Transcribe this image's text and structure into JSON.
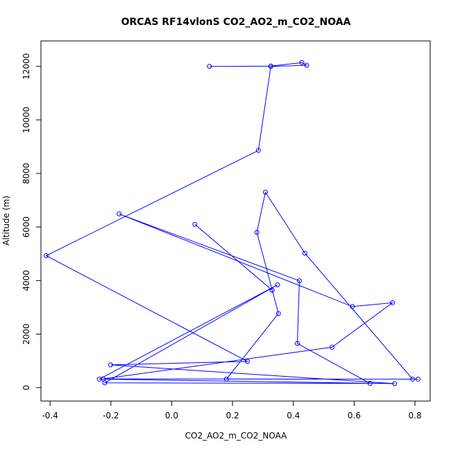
{
  "chart_data": {
    "type": "line",
    "title": "ORCAS RF14vlonS CO2_AO2_m_CO2_NOAA",
    "xlabel": "CO2_AO2_m_CO2_NOAA",
    "ylabel": "Altitude (m)",
    "xlim": [
      -0.43,
      0.85
    ],
    "ylim": [
      -500,
      12950
    ],
    "xticks": [
      -0.4,
      -0.2,
      0.0,
      0.2,
      0.4,
      0.6,
      0.8
    ],
    "xtick_labels": [
      "-0.4",
      "-0.2",
      "0.0",
      "0.2",
      "0.4",
      "0.6",
      "0.8"
    ],
    "yticks": [
      0,
      2000,
      4000,
      6000,
      8000,
      10000,
      12000
    ],
    "ytick_labels": [
      "0",
      "2000",
      "4000",
      "6000",
      "8000",
      "10000",
      "12000"
    ],
    "grid": false,
    "series": [
      {
        "color": "#0000ff",
        "marker": "open-circle",
        "points": [
          {
            "x": 0.124,
            "y": 12000
          },
          {
            "x": 0.326,
            "y": 12010
          },
          {
            "x": 0.428,
            "y": 12140
          },
          {
            "x": 0.444,
            "y": 12040
          },
          {
            "x": 0.326,
            "y": 12000
          },
          {
            "x": 0.285,
            "y": 8860
          },
          {
            "x": -0.413,
            "y": 4930
          },
          {
            "x": 0.249,
            "y": 980
          },
          {
            "x": -0.201,
            "y": 850
          },
          {
            "x": 0.733,
            "y": 150
          },
          {
            "x": -0.238,
            "y": 320
          },
          {
            "x": 0.348,
            "y": 3840
          },
          {
            "x": -0.22,
            "y": 180
          },
          {
            "x": 0.652,
            "y": 160
          },
          {
            "x": 0.413,
            "y": 1650
          },
          {
            "x": 0.42,
            "y": 3990
          },
          {
            "x": -0.173,
            "y": 6490
          },
          {
            "x": 0.594,
            "y": 3030
          },
          {
            "x": 0.726,
            "y": 3170
          },
          {
            "x": 0.527,
            "y": 1510
          },
          {
            "x": -0.225,
            "y": 330
          },
          {
            "x": 0.81,
            "y": 320
          },
          {
            "x": 0.18,
            "y": 320
          },
          {
            "x": 0.351,
            "y": 2770
          },
          {
            "x": 0.28,
            "y": 5800
          },
          {
            "x": 0.308,
            "y": 7300
          },
          {
            "x": 0.438,
            "y": 5020
          },
          {
            "x": 0.792,
            "y": 320
          }
        ]
      },
      {
        "color": "#0000ff",
        "marker": "open-circle",
        "points": [
          {
            "x": 0.076,
            "y": 6100
          },
          {
            "x": 0.33,
            "y": 3640
          },
          {
            "x": 0.33,
            "y": 3640
          }
        ]
      }
    ]
  }
}
